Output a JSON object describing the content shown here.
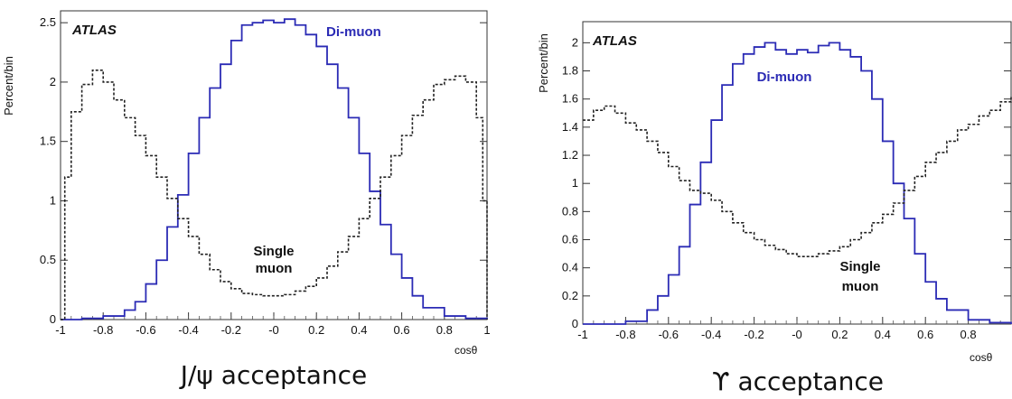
{
  "chart_data": [
    {
      "type": "line",
      "title": "J/ψ acceptance",
      "badge": "ATLAS",
      "ylabel": "Percent/bin",
      "xlabel": "cosθ",
      "xlim": [
        -1,
        1
      ],
      "ylim": [
        0,
        2.6
      ],
      "xticks": [
        -1,
        -0.8,
        -0.6,
        -0.4,
        -0.2,
        0,
        0.2,
        0.4,
        0.6,
        0.8,
        1
      ],
      "xtick_labels": [
        "-1",
        "-0.8",
        "-0.6",
        "-0.4",
        "-0.2",
        "-0",
        "0.2",
        "0.4",
        "0.6",
        "0.8",
        "1"
      ],
      "yticks": [
        0,
        0.5,
        1,
        1.5,
        2,
        2.5
      ],
      "ytick_labels": [
        "0",
        "0.5",
        "1",
        "1.5",
        "2",
        "2.5"
      ],
      "grid": false,
      "annotations": [
        "Di-muon",
        "Single",
        "muon"
      ],
      "series": [
        {
          "name": "Di-muon",
          "color": "#2b2bb5",
          "style": "solid",
          "x": [
            -1.0,
            -0.9,
            -0.8,
            -0.7,
            -0.65,
            -0.6,
            -0.55,
            -0.5,
            -0.45,
            -0.4,
            -0.35,
            -0.3,
            -0.25,
            -0.2,
            -0.15,
            -0.1,
            -0.05,
            0.0,
            0.05,
            0.1,
            0.15,
            0.2,
            0.25,
            0.3,
            0.35,
            0.4,
            0.45,
            0.5,
            0.55,
            0.6,
            0.65,
            0.7,
            0.8,
            0.9,
            1.0
          ],
          "y": [
            0.0,
            0.01,
            0.03,
            0.08,
            0.15,
            0.3,
            0.5,
            0.78,
            1.05,
            1.4,
            1.7,
            1.95,
            2.15,
            2.35,
            2.48,
            2.5,
            2.52,
            2.5,
            2.53,
            2.48,
            2.4,
            2.3,
            2.15,
            1.95,
            1.7,
            1.4,
            1.08,
            0.8,
            0.55,
            0.35,
            0.2,
            0.1,
            0.03,
            0.01,
            0.0
          ]
        },
        {
          "name": "Single muon",
          "color": "#222222",
          "style": "dashed",
          "x": [
            -1.0,
            -0.98,
            -0.95,
            -0.9,
            -0.85,
            -0.8,
            -0.75,
            -0.7,
            -0.65,
            -0.6,
            -0.55,
            -0.5,
            -0.45,
            -0.4,
            -0.35,
            -0.3,
            -0.25,
            -0.2,
            -0.15,
            -0.1,
            -0.05,
            0.0,
            0.05,
            0.1,
            0.15,
            0.2,
            0.25,
            0.3,
            0.35,
            0.4,
            0.45,
            0.5,
            0.55,
            0.6,
            0.65,
            0.7,
            0.75,
            0.8,
            0.85,
            0.9,
            0.95,
            0.98,
            1.0
          ],
          "y": [
            0.0,
            1.2,
            1.75,
            1.98,
            2.1,
            2.0,
            1.85,
            1.7,
            1.55,
            1.38,
            1.2,
            1.02,
            0.85,
            0.7,
            0.55,
            0.42,
            0.32,
            0.26,
            0.22,
            0.21,
            0.2,
            0.2,
            0.21,
            0.24,
            0.28,
            0.35,
            0.45,
            0.57,
            0.7,
            0.85,
            1.02,
            1.2,
            1.38,
            1.55,
            1.72,
            1.85,
            1.98,
            2.02,
            2.05,
            2.0,
            1.7,
            1.0,
            0.0
          ]
        }
      ]
    },
    {
      "type": "line",
      "title": "ϒ acceptance",
      "badge": "ATLAS",
      "ylabel": "Percent/bin",
      "xlabel": "cosθ",
      "xlim": [
        -1,
        1
      ],
      "ylim": [
        0,
        2.15
      ],
      "xticks": [
        -1,
        -0.8,
        -0.6,
        -0.4,
        -0.2,
        0,
        0.2,
        0.4,
        0.6,
        0.8
      ],
      "xtick_labels": [
        "-1",
        "-0.8",
        "-0.6",
        "-0.4",
        "-0.2",
        "-0",
        "0.2",
        "0.4",
        "0.6",
        "0.8"
      ],
      "yticks": [
        0,
        0.2,
        0.4,
        0.6,
        0.8,
        1,
        1.2,
        1.4,
        1.6,
        1.8,
        2
      ],
      "ytick_labels": [
        "0",
        "0.2",
        "0.4",
        "0.6",
        "0.8",
        "1",
        "1.2",
        "1.4",
        "1.6",
        "1.8",
        "2"
      ],
      "grid": false,
      "annotations": [
        "Di-muon",
        "Single",
        "muon"
      ],
      "series": [
        {
          "name": "Di-muon",
          "color": "#2b2bb5",
          "style": "solid",
          "x": [
            -1.0,
            -0.9,
            -0.8,
            -0.7,
            -0.65,
            -0.6,
            -0.55,
            -0.5,
            -0.45,
            -0.4,
            -0.35,
            -0.3,
            -0.25,
            -0.2,
            -0.15,
            -0.1,
            -0.05,
            0.0,
            0.05,
            0.1,
            0.15,
            0.2,
            0.25,
            0.3,
            0.35,
            0.4,
            0.45,
            0.5,
            0.55,
            0.6,
            0.65,
            0.7,
            0.8,
            0.9,
            1.0
          ],
          "y": [
            0.0,
            0.0,
            0.02,
            0.1,
            0.2,
            0.35,
            0.55,
            0.85,
            1.15,
            1.45,
            1.7,
            1.85,
            1.92,
            1.97,
            2.0,
            1.95,
            1.92,
            1.95,
            1.93,
            1.98,
            2.0,
            1.95,
            1.9,
            1.8,
            1.6,
            1.3,
            1.0,
            0.75,
            0.5,
            0.3,
            0.18,
            0.1,
            0.03,
            0.01,
            0.0
          ]
        },
        {
          "name": "Single muon",
          "color": "#222222",
          "style": "dashed",
          "x": [
            -1.0,
            -0.95,
            -0.9,
            -0.85,
            -0.8,
            -0.75,
            -0.7,
            -0.65,
            -0.6,
            -0.55,
            -0.5,
            -0.45,
            -0.4,
            -0.35,
            -0.3,
            -0.25,
            -0.2,
            -0.15,
            -0.1,
            -0.05,
            0.0,
            0.05,
            0.1,
            0.15,
            0.2,
            0.25,
            0.3,
            0.35,
            0.4,
            0.45,
            0.5,
            0.55,
            0.6,
            0.65,
            0.7,
            0.75,
            0.8,
            0.85,
            0.9,
            0.95,
            1.0
          ],
          "y": [
            1.45,
            1.52,
            1.55,
            1.5,
            1.43,
            1.38,
            1.3,
            1.22,
            1.12,
            1.02,
            0.95,
            0.93,
            0.88,
            0.8,
            0.72,
            0.65,
            0.6,
            0.56,
            0.53,
            0.5,
            0.48,
            0.48,
            0.5,
            0.52,
            0.55,
            0.6,
            0.65,
            0.72,
            0.78,
            0.86,
            0.95,
            1.05,
            1.15,
            1.22,
            1.3,
            1.38,
            1.42,
            1.48,
            1.52,
            1.58,
            1.62
          ]
        }
      ]
    }
  ]
}
